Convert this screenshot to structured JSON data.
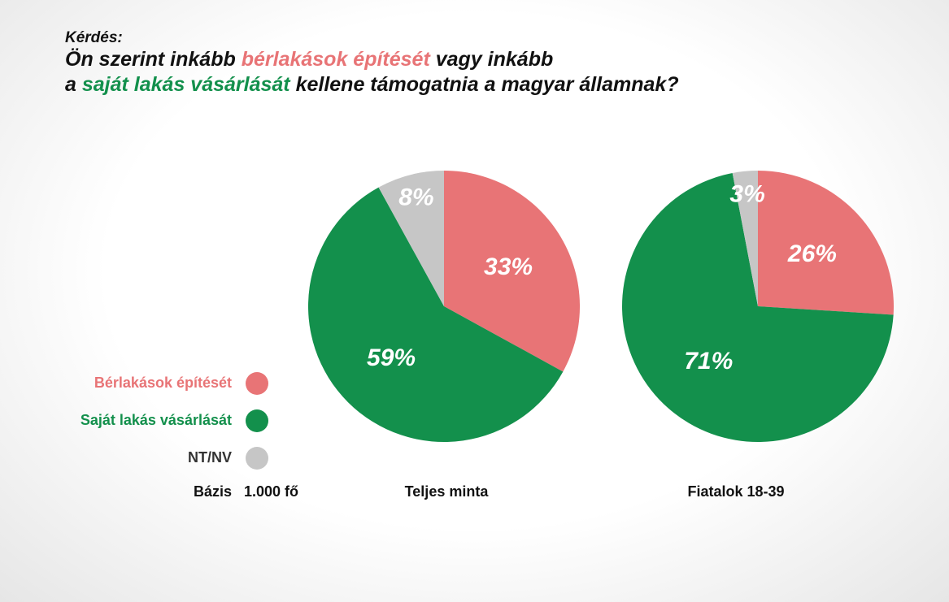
{
  "question_label": "Kérdés:",
  "question_lines": [
    [
      "Ön szerint inkább",
      "bérlakások építését",
      "vagy inkább"
    ],
    [
      "a",
      "saját lakás vásárlását",
      "kellene támogatnia a magyar államnak?"
    ]
  ],
  "base_label": "Bázis",
  "base_value": "1.000 fő",
  "chart_data": [
    {
      "type": "pie",
      "title": "Teljes minta",
      "categories": [
        "Bérlakások építését",
        "Saját lakás vásárlását",
        "NT/NV"
      ],
      "colors": [
        "#e87476",
        "#13904c",
        "#c6c6c6"
      ],
      "values": [
        33,
        59,
        8
      ],
      "value_labels": [
        "33%",
        "59%",
        "8%"
      ]
    },
    {
      "type": "pie",
      "title": "Fiatalok 18-39",
      "categories": [
        "Bérlakások építését",
        "Saját lakás vásárlását",
        "NT/NV"
      ],
      "colors": [
        "#e87476",
        "#13904c",
        "#c6c6c6"
      ],
      "values": [
        26,
        71,
        3
      ],
      "value_labels": [
        "26%",
        "71%",
        "3%"
      ]
    }
  ]
}
